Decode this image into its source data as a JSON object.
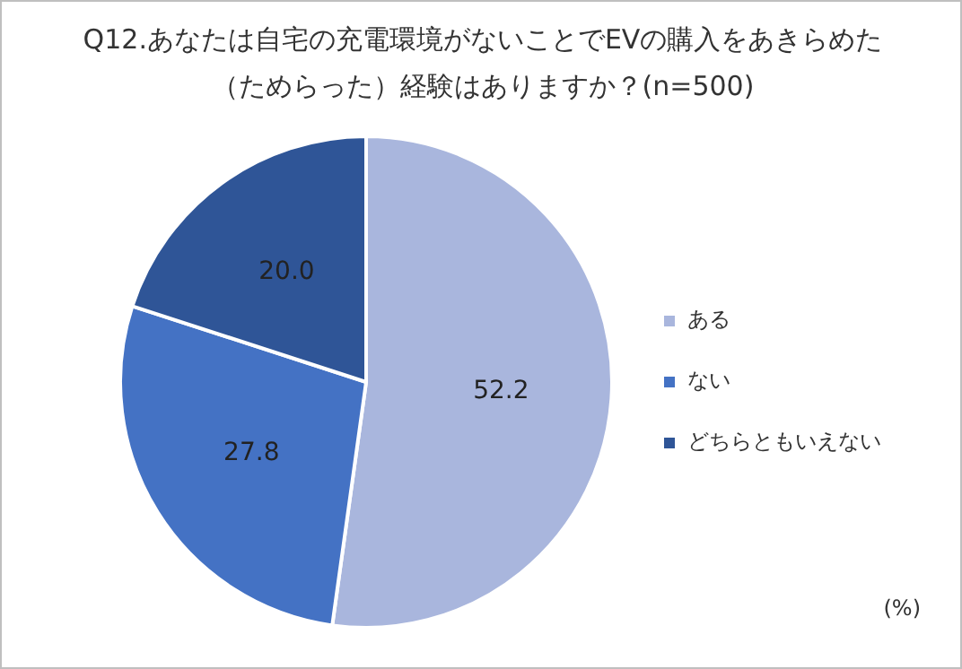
{
  "chart_data": {
    "type": "pie",
    "title": "Q12.あなたは自宅の充電環境がないことでEVの購入をあきらめた（ためらった）経験はありますか？(n=500)",
    "categories": [
      "ある",
      "ない",
      "どちらともいえない"
    ],
    "values": [
      52.2,
      27.8,
      20.0
    ],
    "value_labels": [
      "52.2",
      "27.8",
      "20.0"
    ],
    "colors": [
      "#a9b6dd",
      "#4472c4",
      "#2f5597"
    ],
    "legend": "right",
    "annotations": [
      "(%)"
    ]
  }
}
